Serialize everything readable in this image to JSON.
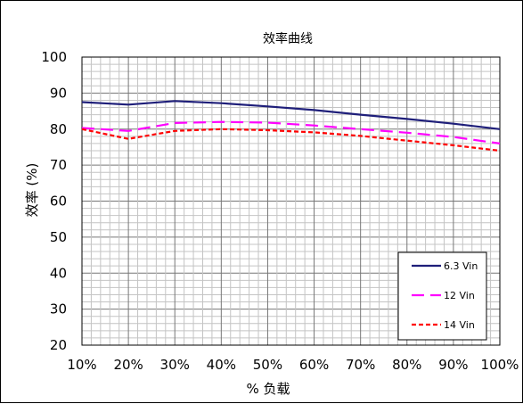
{
  "chart_data": {
    "type": "line",
    "title": "效率曲线",
    "xlabel": "% 负载",
    "ylabel": "效率 (%)",
    "categories": [
      "10%",
      "20%",
      "30%",
      "40%",
      "50%",
      "60%",
      "70%",
      "80%",
      "90%",
      "100%"
    ],
    "x": [
      10,
      20,
      30,
      40,
      50,
      60,
      70,
      80,
      90,
      100
    ],
    "xlim": [
      10,
      100
    ],
    "ylim": [
      20,
      100
    ],
    "yticks": [
      "20",
      "30",
      "40",
      "50",
      "60",
      "70",
      "80",
      "90",
      "100"
    ],
    "grid": true,
    "legend_position": "bottom-right",
    "series": [
      {
        "name": "6.3 Vin",
        "color": "#1f1f7a",
        "style": "solid",
        "values": [
          87.5,
          86.8,
          87.8,
          87.2,
          86.3,
          85.3,
          84.0,
          82.8,
          81.5,
          80.0
        ]
      },
      {
        "name": "12 Vin",
        "color": "#ff00ff",
        "style": "long-dash",
        "values": [
          80.3,
          79.5,
          81.7,
          82.0,
          81.8,
          81.0,
          80.0,
          79.0,
          77.8,
          76.0
        ]
      },
      {
        "name": "14 Vin",
        "color": "#ff0000",
        "style": "short-dash",
        "values": [
          80.0,
          77.3,
          79.5,
          80.0,
          79.7,
          79.1,
          78.1,
          76.8,
          75.5,
          74.0
        ]
      }
    ]
  }
}
